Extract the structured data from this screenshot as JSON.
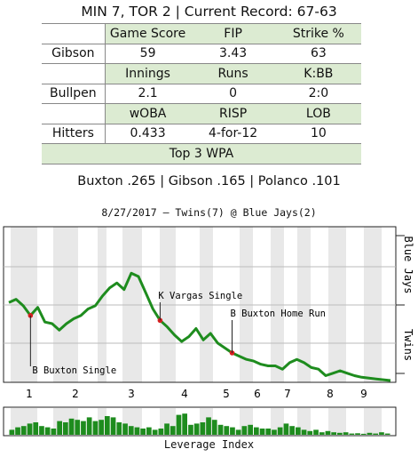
{
  "header": {
    "title": "MIN 7, TOR 2 | Current Record: 67-63"
  },
  "stats": {
    "rows": [
      {
        "label": "",
        "cells": [
          "Game Score",
          "FIP",
          "Strike %"
        ],
        "header": true
      },
      {
        "label": "Gibson",
        "cells": [
          "59",
          "3.43",
          "63"
        ],
        "header": false
      },
      {
        "label": "",
        "cells": [
          "Innings",
          "Runs",
          "K:BB"
        ],
        "header": true
      },
      {
        "label": "Bullpen",
        "cells": [
          "2.1",
          "0",
          "2:0"
        ],
        "header": false
      },
      {
        "label": "",
        "cells": [
          "wOBA",
          "RISP",
          "LOB"
        ],
        "header": true
      },
      {
        "label": "Hitters",
        "cells": [
          "0.433",
          "4-for-12",
          "10"
        ],
        "header": false
      }
    ],
    "wpa_header": "Top 3 WPA",
    "wpa_line": "Buxton .265 | Gibson .165 | Polanco .101"
  },
  "chart_data": {
    "type": "line",
    "title": "8/27/2017 – Twins(7) @ Blue Jays(2)",
    "right_labels": {
      "top": "Blue Jays",
      "bottom": "Twins"
    },
    "x_ticks": [
      "1",
      "2",
      "3",
      "4",
      "5",
      "6",
      "7",
      "8",
      "9"
    ],
    "xlabel": "Leverage Index",
    "series": [
      {
        "type": "line",
        "values": [
          0.48,
          0.5,
          0.46,
          0.4,
          0.45,
          0.36,
          0.35,
          0.31,
          0.35,
          0.38,
          0.4,
          0.44,
          0.46,
          0.52,
          0.57,
          0.6,
          0.56,
          0.66,
          0.64,
          0.54,
          0.44,
          0.37,
          0.33,
          0.28,
          0.24,
          0.27,
          0.32,
          0.25,
          0.29,
          0.23,
          0.2,
          0.17,
          0.15,
          0.13,
          0.12,
          0.1,
          0.09,
          0.09,
          0.07,
          0.11,
          0.13,
          0.11,
          0.08,
          0.07,
          0.03,
          0.045,
          0.06,
          0.045,
          0.03,
          0.02,
          0.015,
          0.01,
          0.005,
          0.0
        ]
      },
      {
        "type": "leverage_bars",
        "values": [
          0.2,
          0.3,
          0.35,
          0.45,
          0.5,
          0.35,
          0.3,
          0.25,
          0.55,
          0.5,
          0.65,
          0.6,
          0.55,
          0.7,
          0.55,
          0.6,
          0.75,
          0.7,
          0.5,
          0.45,
          0.35,
          0.3,
          0.25,
          0.3,
          0.2,
          0.25,
          0.45,
          0.35,
          0.8,
          0.85,
          0.4,
          0.45,
          0.5,
          0.7,
          0.6,
          0.4,
          0.35,
          0.3,
          0.2,
          0.35,
          0.4,
          0.3,
          0.25,
          0.25,
          0.2,
          0.3,
          0.45,
          0.35,
          0.3,
          0.2,
          0.15,
          0.2,
          0.1,
          0.15,
          0.1,
          0.08,
          0.1,
          0.05,
          0.06,
          0.04,
          0.08,
          0.05,
          0.1,
          0.05
        ]
      }
    ],
    "annotations": [
      {
        "text": "B Buxton Single",
        "point_index": 3,
        "value": 0.4
      },
      {
        "text": "K Vargas Single",
        "point_index": 21,
        "value": 0.37
      },
      {
        "text": "B Buxton Home Run",
        "point_index": 31,
        "value": 0.17
      }
    ],
    "colors": {
      "line": "#1e8c1e",
      "bars": "#1e8c1e",
      "marker": "#d62020",
      "band": "#e8e8e8"
    }
  }
}
